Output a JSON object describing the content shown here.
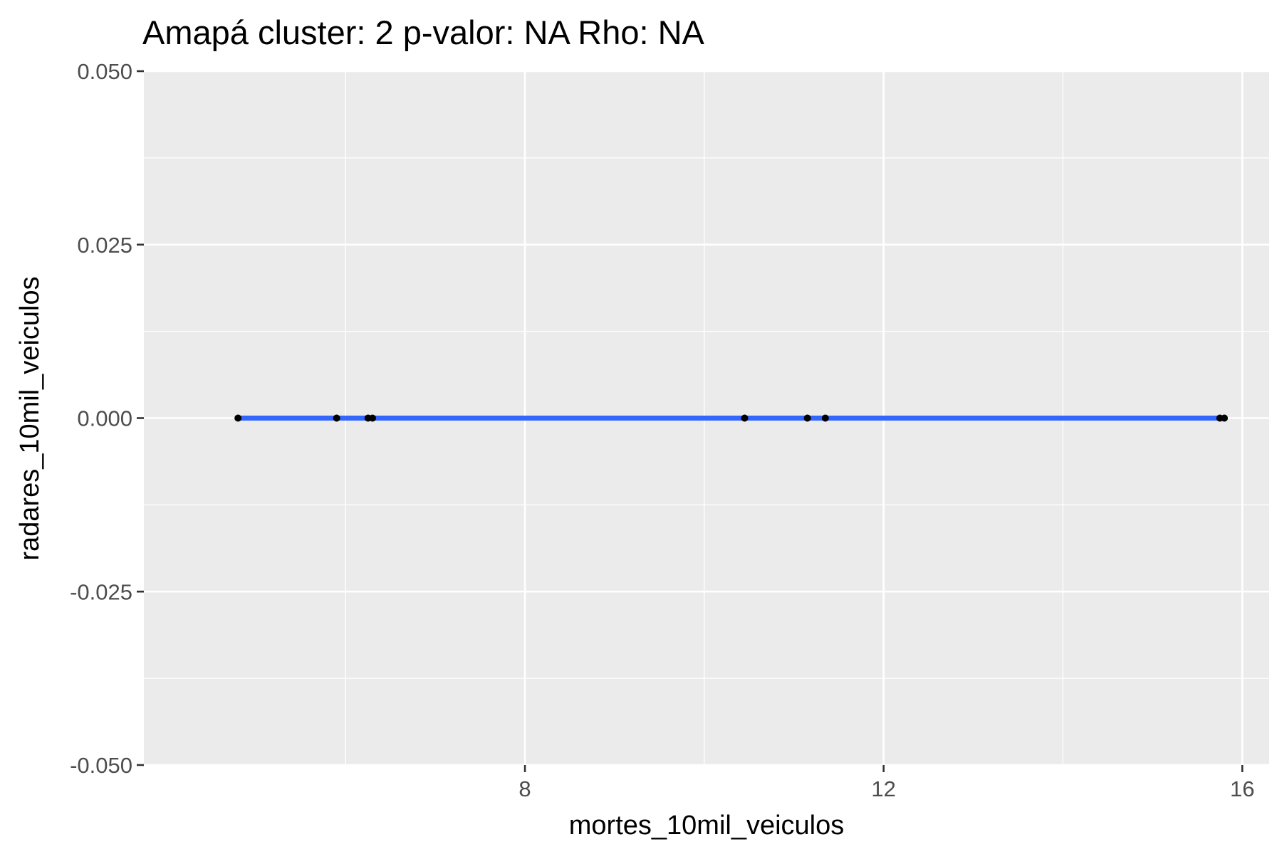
{
  "chart_data": {
    "type": "scatter",
    "title": "Amapá cluster: 2 p-valor: NA Rho: NA",
    "xlabel": "mortes_10mil_veiculos",
    "ylabel": "radares_10mil_veiculos",
    "xlim": [
      3.75,
      16.3
    ],
    "ylim": [
      -0.05,
      0.05
    ],
    "x_ticks": [
      {
        "value": 8,
        "label": "8"
      },
      {
        "value": 12,
        "label": "12"
      },
      {
        "value": 16,
        "label": "16"
      }
    ],
    "x_minor_ticks": [
      6,
      10,
      14
    ],
    "y_ticks": [
      {
        "value": 0.05,
        "label": "0.050"
      },
      {
        "value": 0.025,
        "label": "0.025"
      },
      {
        "value": 0.0,
        "label": "0.000"
      },
      {
        "value": -0.025,
        "label": "-0.025"
      },
      {
        "value": -0.05,
        "label": "-0.050"
      }
    ],
    "y_minor_ticks": [
      0.0375,
      0.0125,
      -0.0125,
      -0.0375
    ],
    "grid": true,
    "legend": "none",
    "points": [
      {
        "x": 4.8,
        "y": 0
      },
      {
        "x": 5.9,
        "y": 0
      },
      {
        "x": 6.25,
        "y": 0
      },
      {
        "x": 6.3,
        "y": 0
      },
      {
        "x": 10.45,
        "y": 0
      },
      {
        "x": 11.15,
        "y": 0
      },
      {
        "x": 11.35,
        "y": 0
      },
      {
        "x": 15.75,
        "y": 0
      },
      {
        "x": 15.8,
        "y": 0
      }
    ],
    "fit_line": {
      "x": [
        4.8,
        15.8
      ],
      "y": [
        0,
        0
      ]
    },
    "colors": {
      "panel_background": "#ebebeb",
      "grid_major": "#ffffff",
      "grid_minor": "#ffffff",
      "fit_line": "#3366ff",
      "points": "#000000",
      "tick_text": "#4d4d4d",
      "axis_ticks": "#333333"
    }
  }
}
